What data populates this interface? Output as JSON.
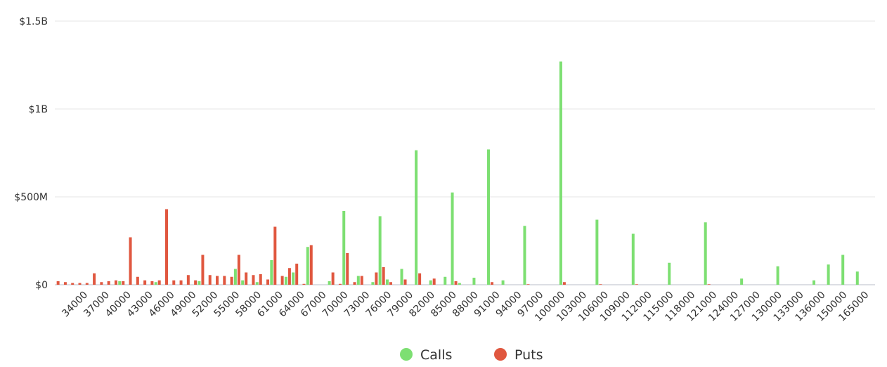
{
  "chart_data": {
    "type": "bar",
    "categories": [
      null,
      null,
      null,
      null,
      "34000",
      null,
      null,
      "37000",
      null,
      null,
      "40000",
      null,
      null,
      "43000",
      null,
      null,
      "46000",
      null,
      null,
      "49000",
      null,
      null,
      "52000",
      null,
      null,
      "55000",
      null,
      null,
      "58000",
      null,
      null,
      "61000",
      null,
      null,
      "64000",
      null,
      null,
      "67000",
      null,
      null,
      "70000",
      null,
      null,
      "73000",
      null,
      null,
      "76000",
      null,
      null,
      "79000",
      null,
      null,
      "82000",
      null,
      null,
      "85000",
      null,
      null,
      "88000",
      null,
      null,
      "91000",
      null,
      null,
      "94000",
      null,
      null,
      "97000",
      null,
      null,
      "100000",
      null,
      null,
      "103000",
      null,
      null,
      "106000",
      null,
      null,
      "109000",
      null,
      null,
      "112000",
      null,
      null,
      "115000",
      null,
      null,
      "118000",
      null,
      null,
      "121000",
      null,
      null,
      "124000",
      null,
      null,
      "127000",
      null,
      null,
      "130000",
      null,
      null,
      "133000",
      null,
      null,
      "136000",
      null,
      null,
      "150000",
      null,
      null,
      "165000",
      null
    ],
    "series": [
      {
        "name": "Calls",
        "color": "#7ddf72",
        "values": [
          0,
          0,
          0,
          0,
          0,
          0,
          0,
          0,
          0,
          20000000.0,
          0,
          0,
          0,
          0,
          15000000.0,
          0,
          0,
          0,
          0,
          0,
          20000000.0,
          0,
          0,
          0,
          0,
          90000000.0,
          25000000.0,
          0,
          15000000.0,
          0,
          140000000.0,
          0,
          45000000.0,
          70000000.0,
          0,
          215000000.0,
          0,
          0,
          20000000.0,
          0,
          420000000.0,
          0,
          50000000.0,
          0,
          15000000.0,
          390000000.0,
          30000000.0,
          0,
          90000000.0,
          0,
          765000000.0,
          0,
          25000000.0,
          0,
          45000000.0,
          525000000.0,
          10000000.0,
          0,
          40000000.0,
          0,
          770000000.0,
          0,
          25000000.0,
          0,
          0,
          335000000.0,
          0,
          0,
          0,
          0,
          1270000000.0,
          0,
          0,
          0,
          0,
          370000000.0,
          0,
          0,
          0,
          0,
          290000000.0,
          0,
          0,
          0,
          0,
          125000000.0,
          0,
          0,
          0,
          0,
          355000000.0,
          0,
          0,
          0,
          0,
          35000000.0,
          0,
          0,
          0,
          0,
          105000000.0,
          0,
          0,
          0,
          0,
          25000000.0,
          0,
          115000000.0,
          0,
          170000000.0,
          0,
          75000000.0,
          0,
          0
        ]
      },
      {
        "name": "Puts",
        "color": "#e0573f",
        "values": [
          20000000.0,
          15000000.0,
          10000000.0,
          10000000.0,
          10000000.0,
          65000000.0,
          15000000.0,
          20000000.0,
          25000000.0,
          20000000.0,
          270000000.0,
          45000000.0,
          25000000.0,
          20000000.0,
          25000000.0,
          430000000.0,
          25000000.0,
          25000000.0,
          55000000.0,
          25000000.0,
          170000000.0,
          55000000.0,
          50000000.0,
          50000000.0,
          45000000.0,
          170000000.0,
          70000000.0,
          55000000.0,
          60000000.0,
          30000000.0,
          330000000.0,
          50000000.0,
          95000000.0,
          120000000.0,
          5000000.0,
          225000000.0,
          0,
          0,
          70000000.0,
          5000000.0,
          180000000.0,
          15000000.0,
          50000000.0,
          0,
          70000000.0,
          100000000.0,
          15000000.0,
          0,
          30000000.0,
          0,
          65000000.0,
          0,
          35000000.0,
          0,
          0,
          20000000.0,
          0,
          0,
          0,
          0,
          15000000.0,
          0,
          0,
          0,
          0,
          3000000.0,
          0,
          0,
          0,
          0,
          15000000.0,
          0,
          0,
          0,
          0,
          3000000.0,
          0,
          0,
          0,
          0,
          3000000.0,
          0,
          0,
          0,
          0,
          0,
          0,
          0,
          0,
          0,
          3000000.0,
          0,
          0,
          0,
          0,
          0,
          0,
          0,
          0,
          0,
          0,
          0,
          0,
          0,
          0,
          0,
          0,
          0,
          0,
          0,
          0,
          0,
          0,
          0
        ]
      }
    ],
    "ylim": [
      0,
      1500000000.0
    ],
    "yticks": [
      {
        "value": 0,
        "label": "$0"
      },
      {
        "value": 500000000.0,
        "label": "$500M"
      },
      {
        "value": 1000000000.0,
        "label": "$1B"
      },
      {
        "value": 1500000000.0,
        "label": "$1.5B"
      }
    ],
    "grid": true,
    "legend": "bottom"
  }
}
